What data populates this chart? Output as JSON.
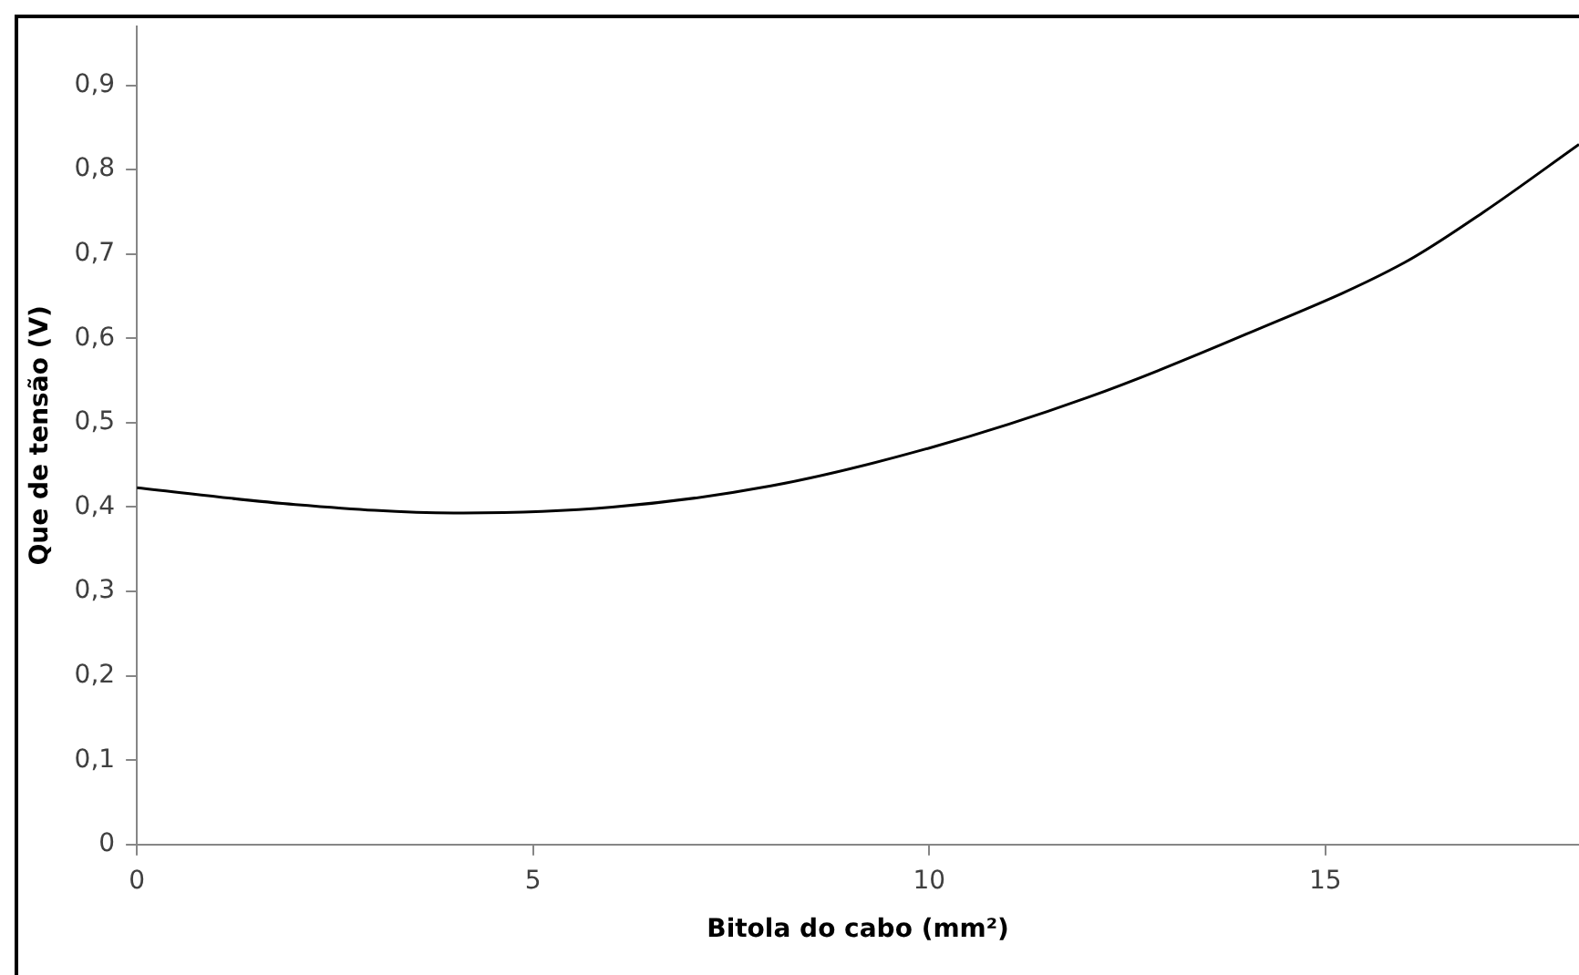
{
  "chart_data": {
    "type": "line",
    "xlabel": "Bitola do cabo (mm²)",
    "ylabel": "Que de tensão (V)",
    "x": [
      0,
      2,
      4,
      6,
      8,
      10,
      12,
      14,
      16,
      17,
      18.2
    ],
    "series": [
      {
        "color": "#000000",
        "values": [
          0.423,
          0.403,
          0.393,
          0.4,
          0.425,
          0.47,
          0.53,
          0.605,
          0.69,
          0.75,
          0.83
        ]
      }
    ],
    "xlim": [
      0,
      18.2
    ],
    "xticks": [
      0,
      5,
      10,
      15
    ],
    "ylim": [
      0,
      0.97
    ],
    "yticks": [
      {
        "value": 0,
        "label": "0"
      },
      {
        "value": 0.1,
        "label": "0,1"
      },
      {
        "value": 0.2,
        "label": "0,2"
      },
      {
        "value": 0.3,
        "label": "0,3"
      },
      {
        "value": 0.4,
        "label": "0,4"
      },
      {
        "value": 0.5,
        "label": "0,5"
      },
      {
        "value": 0.6,
        "label": "0,6"
      },
      {
        "value": 0.7,
        "label": "0,7"
      },
      {
        "value": 0.8,
        "label": "0,8"
      },
      {
        "value": 0.9,
        "label": "0,9"
      }
    ],
    "grid": false,
    "legend": false,
    "marker": "none",
    "line_style": "solid"
  }
}
